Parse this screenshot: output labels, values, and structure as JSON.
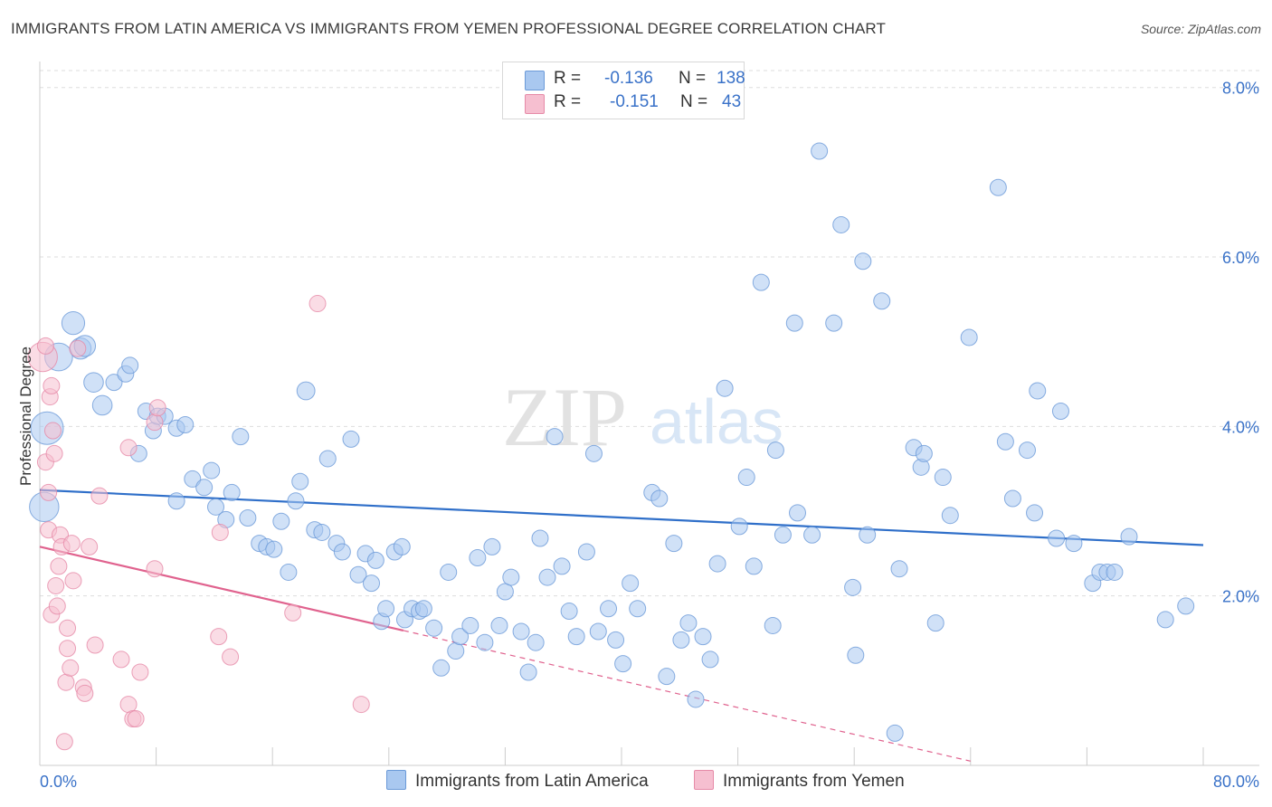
{
  "header": {
    "title": "IMMIGRANTS FROM LATIN AMERICA VS IMMIGRANTS FROM YEMEN PROFESSIONAL DEGREE CORRELATION CHART",
    "source": "Source: ZipAtlas.com"
  },
  "watermark": {
    "zip": "ZIP",
    "atlas": "atlas"
  },
  "legend": {
    "r_label": "R =",
    "n_label": "N =",
    "rows": [
      {
        "r": "-0.136",
        "n": "138"
      },
      {
        "r": "-0.151",
        "n": "43"
      }
    ]
  },
  "colors": {
    "blue_fill": "#a9c8f0",
    "blue_stroke": "#6b9ad8",
    "blue_line": "#2f6fc9",
    "pink_fill": "#f6bfd0",
    "pink_stroke": "#e68aa7",
    "pink_line": "#e0628e",
    "tick_text": "#3a72c8",
    "grid": "#dddddd"
  },
  "chart_data": {
    "type": "scatter",
    "title": "IMMIGRANTS FROM LATIN AMERICA VS IMMIGRANTS FROM YEMEN PROFESSIONAL DEGREE CORRELATION CHART",
    "xlabel": "",
    "ylabel": "Professional Degree",
    "xlim": [
      0,
      80
    ],
    "ylim": [
      0,
      8.2
    ],
    "x_tick_labels": [
      "0.0%",
      "80.0%"
    ],
    "y_ticks": [
      2,
      4,
      6,
      8
    ],
    "y_tick_labels": [
      "2.0%",
      "4.0%",
      "6.0%",
      "8.0%"
    ],
    "grid": true,
    "legend_position": "top-center",
    "series": [
      {
        "name": "Immigrants from Latin America",
        "color": "#a9c8f0",
        "r": -0.136,
        "n": 138,
        "trend": {
          "x": [
            0,
            80
          ],
          "y": [
            3.25,
            2.6
          ],
          "dashed_from": null
        },
        "points": [
          [
            0.3,
            3.05,
            1.8
          ],
          [
            0.5,
            3.98,
            2.0
          ],
          [
            1.3,
            4.82,
            1.7
          ],
          [
            2.3,
            5.22,
            1.4
          ],
          [
            2.8,
            4.92,
            1.3
          ],
          [
            3.1,
            4.95,
            1.3
          ],
          [
            3.7,
            4.52,
            1.2
          ],
          [
            4.3,
            4.25,
            1.2
          ],
          [
            5.1,
            4.52,
            1.0
          ],
          [
            5.9,
            4.62,
            1.0
          ],
          [
            6.2,
            4.72,
            1.0
          ],
          [
            6.8,
            3.68,
            1.0
          ],
          [
            7.3,
            4.18,
            1.0
          ],
          [
            7.8,
            3.95,
            1.0
          ],
          [
            8.1,
            4.12,
            1.0
          ],
          [
            8.6,
            4.12,
            1.0
          ],
          [
            9.4,
            3.98,
            1.0
          ],
          [
            10.0,
            4.02,
            1.0
          ],
          [
            9.4,
            3.12,
            1.0
          ],
          [
            10.5,
            3.38,
            1.0
          ],
          [
            11.3,
            3.28,
            1.0
          ],
          [
            11.8,
            3.48,
            1.0
          ],
          [
            12.1,
            3.05,
            1.0
          ],
          [
            12.8,
            2.9,
            1.0
          ],
          [
            13.2,
            3.22,
            1.0
          ],
          [
            13.8,
            3.88,
            1.0
          ],
          [
            14.3,
            2.92,
            1.0
          ],
          [
            15.1,
            2.62,
            1.0
          ],
          [
            15.6,
            2.58,
            1.0
          ],
          [
            16.1,
            2.55,
            1.0
          ],
          [
            16.6,
            2.88,
            1.0
          ],
          [
            17.1,
            2.28,
            1.0
          ],
          [
            17.6,
            3.12,
            1.0
          ],
          [
            17.9,
            3.35,
            1.0
          ],
          [
            18.3,
            4.42,
            1.1
          ],
          [
            18.9,
            2.78,
            1.0
          ],
          [
            19.4,
            2.75,
            1.0
          ],
          [
            19.8,
            3.62,
            1.0
          ],
          [
            20.4,
            2.62,
            1.0
          ],
          [
            20.8,
            2.52,
            1.0
          ],
          [
            21.4,
            3.85,
            1.0
          ],
          [
            21.9,
            2.25,
            1.0
          ],
          [
            22.4,
            2.5,
            1.0
          ],
          [
            22.8,
            2.15,
            1.0
          ],
          [
            23.1,
            2.42,
            1.0
          ],
          [
            23.5,
            1.7,
            1.0
          ],
          [
            23.8,
            1.85,
            1.0
          ],
          [
            24.4,
            2.52,
            1.0
          ],
          [
            24.9,
            2.58,
            1.0
          ],
          [
            25.1,
            1.72,
            1.0
          ],
          [
            25.6,
            1.85,
            1.0
          ],
          [
            26.1,
            1.82,
            1.0
          ],
          [
            26.4,
            1.85,
            1.0
          ],
          [
            27.1,
            1.62,
            1.0
          ],
          [
            27.6,
            1.15,
            1.0
          ],
          [
            28.1,
            2.28,
            1.0
          ],
          [
            28.6,
            1.35,
            1.0
          ],
          [
            28.9,
            1.52,
            1.0
          ],
          [
            29.6,
            1.65,
            1.0
          ],
          [
            30.1,
            2.45,
            1.0
          ],
          [
            30.6,
            1.45,
            1.0
          ],
          [
            31.1,
            2.58,
            1.0
          ],
          [
            31.6,
            1.65,
            1.0
          ],
          [
            32.0,
            2.05,
            1.0
          ],
          [
            32.4,
            2.22,
            1.0
          ],
          [
            33.1,
            1.58,
            1.0
          ],
          [
            33.6,
            1.1,
            1.0
          ],
          [
            34.1,
            1.45,
            1.0
          ],
          [
            34.4,
            2.68,
            1.0
          ],
          [
            34.9,
            2.22,
            1.0
          ],
          [
            35.4,
            3.88,
            1.0
          ],
          [
            35.9,
            2.35,
            1.0
          ],
          [
            36.4,
            1.82,
            1.0
          ],
          [
            36.9,
            1.52,
            1.0
          ],
          [
            37.6,
            2.52,
            1.0
          ],
          [
            38.1,
            3.68,
            1.0
          ],
          [
            38.4,
            1.58,
            1.0
          ],
          [
            39.1,
            1.85,
            1.0
          ],
          [
            39.6,
            1.48,
            1.0
          ],
          [
            40.1,
            1.2,
            1.0
          ],
          [
            40.6,
            2.15,
            1.0
          ],
          [
            41.1,
            1.85,
            1.0
          ],
          [
            42.1,
            3.22,
            1.0
          ],
          [
            42.6,
            3.15,
            1.0
          ],
          [
            43.1,
            1.05,
            1.0
          ],
          [
            43.6,
            2.62,
            1.0
          ],
          [
            44.1,
            1.48,
            1.0
          ],
          [
            44.6,
            1.68,
            1.0
          ],
          [
            45.1,
            0.78,
            1.0
          ],
          [
            45.6,
            1.52,
            1.0
          ],
          [
            46.1,
            1.25,
            1.0
          ],
          [
            46.6,
            2.38,
            1.0
          ],
          [
            47.1,
            4.45,
            1.0
          ],
          [
            48.1,
            2.82,
            1.0
          ],
          [
            48.6,
            3.4,
            1.0
          ],
          [
            49.1,
            2.35,
            1.0
          ],
          [
            49.6,
            5.7,
            1.0
          ],
          [
            50.4,
            1.65,
            1.0
          ],
          [
            50.6,
            3.72,
            1.0
          ],
          [
            51.1,
            2.72,
            1.0
          ],
          [
            52.1,
            2.98,
            1.0
          ],
          [
            51.9,
            5.22,
            1.0
          ],
          [
            53.1,
            2.72,
            1.0
          ],
          [
            53.6,
            7.25,
            1.0
          ],
          [
            54.6,
            5.22,
            1.0
          ],
          [
            55.1,
            6.38,
            1.0
          ],
          [
            55.9,
            2.1,
            1.0
          ],
          [
            56.1,
            1.3,
            1.0
          ],
          [
            56.6,
            5.95,
            1.0
          ],
          [
            56.9,
            2.72,
            1.0
          ],
          [
            57.9,
            5.48,
            1.0
          ],
          [
            59.1,
            2.32,
            1.0
          ],
          [
            60.1,
            3.75,
            1.0
          ],
          [
            60.6,
            3.52,
            1.0
          ],
          [
            60.8,
            3.68,
            1.0
          ],
          [
            61.6,
            1.68,
            1.0
          ],
          [
            62.1,
            3.4,
            1.0
          ],
          [
            62.6,
            2.95,
            1.0
          ],
          [
            63.9,
            5.05,
            1.0
          ],
          [
            65.9,
            6.82,
            1.0
          ],
          [
            66.4,
            3.82,
            1.0
          ],
          [
            66.9,
            3.15,
            1.0
          ],
          [
            67.9,
            3.72,
            1.0
          ],
          [
            68.4,
            2.98,
            1.0
          ],
          [
            68.6,
            4.42,
            1.0
          ],
          [
            69.9,
            2.68,
            1.0
          ],
          [
            70.2,
            4.18,
            1.0
          ],
          [
            71.1,
            2.62,
            1.0
          ],
          [
            72.4,
            2.15,
            1.0
          ],
          [
            72.9,
            2.28,
            1.0
          ],
          [
            73.4,
            2.28,
            1.0
          ],
          [
            73.9,
            2.28,
            1.0
          ],
          [
            74.9,
            2.7,
            1.0
          ],
          [
            77.4,
            1.72,
            1.0
          ],
          [
            78.8,
            1.88,
            1.0
          ],
          [
            58.8,
            0.38,
            1.0
          ]
        ]
      },
      {
        "name": "Immigrants from Yemen",
        "color": "#f6bfd0",
        "r": -0.151,
        "n": 43,
        "trend": {
          "x": [
            0,
            64
          ],
          "y": [
            2.58,
            0.05
          ],
          "dashed_from": 25
        },
        "points": [
          [
            0.2,
            4.82,
            1.8
          ],
          [
            0.4,
            3.58,
            1.0
          ],
          [
            0.6,
            3.22,
            1.0
          ],
          [
            0.6,
            2.78,
            1.0
          ],
          [
            0.7,
            4.35,
            1.0
          ],
          [
            0.8,
            4.48,
            1.0
          ],
          [
            0.9,
            3.95,
            1.0
          ],
          [
            1.0,
            3.68,
            1.0
          ],
          [
            0.8,
            1.78,
            1.0
          ],
          [
            1.1,
            2.12,
            1.0
          ],
          [
            1.2,
            1.88,
            1.0
          ],
          [
            1.3,
            2.35,
            1.0
          ],
          [
            1.4,
            2.72,
            1.0
          ],
          [
            1.5,
            2.58,
            1.0
          ],
          [
            1.7,
            0.28,
            1.0
          ],
          [
            1.8,
            0.98,
            1.0
          ],
          [
            1.9,
            1.62,
            1.0
          ],
          [
            1.9,
            1.38,
            1.0
          ],
          [
            2.1,
            1.15,
            1.0
          ],
          [
            2.2,
            2.62,
            1.0
          ],
          [
            2.3,
            2.18,
            1.0
          ],
          [
            2.6,
            4.92,
            1.0
          ],
          [
            3.0,
            0.92,
            1.0
          ],
          [
            3.1,
            0.85,
            1.0
          ],
          [
            3.4,
            2.58,
            1.0
          ],
          [
            3.8,
            1.42,
            1.0
          ],
          [
            4.1,
            3.18,
            1.0
          ],
          [
            5.6,
            1.25,
            1.0
          ],
          [
            6.1,
            0.72,
            1.0
          ],
          [
            6.4,
            0.55,
            1.0
          ],
          [
            6.6,
            0.55,
            1.0
          ],
          [
            6.1,
            3.75,
            1.0
          ],
          [
            6.9,
            1.1,
            1.0
          ],
          [
            7.9,
            4.05,
            1.0
          ],
          [
            7.9,
            2.32,
            1.0
          ],
          [
            8.1,
            4.22,
            1.0
          ],
          [
            12.3,
            1.52,
            1.0
          ],
          [
            12.4,
            2.75,
            1.0
          ],
          [
            13.1,
            1.28,
            1.0
          ],
          [
            17.4,
            1.8,
            1.0
          ],
          [
            19.1,
            5.45,
            1.0
          ],
          [
            22.1,
            0.72,
            1.0
          ],
          [
            0.4,
            4.95,
            1.0
          ]
        ]
      }
    ]
  },
  "bottom_legend": {
    "items": [
      "Immigrants from Latin America",
      "Immigrants from Yemen"
    ]
  }
}
